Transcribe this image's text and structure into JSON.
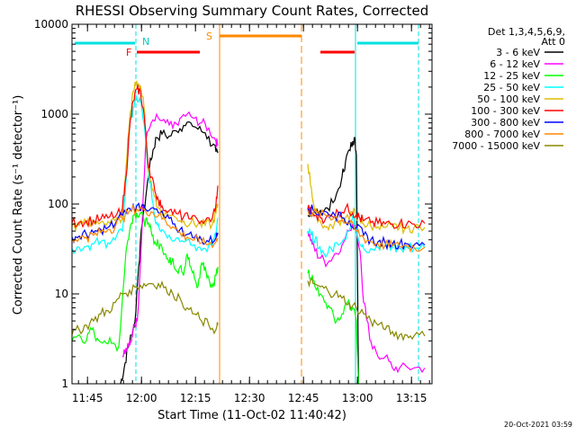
{
  "chart_data": {
    "type": "line",
    "title": "RHESSI Observing Summary Count Rates, Corrected",
    "xlabel": "Start Time (11-Oct-02 11:40:42)",
    "ylabel": "Corrected Count Rate (s⁻¹ detector⁻¹)",
    "footer": "20-Oct-2021 03:59",
    "yscale": "log",
    "ylim": [
      1,
      10000
    ],
    "xlim_minutes": [
      0,
      100
    ],
    "x_unit": "minutes after 11:40:42",
    "x_ticks": [
      {
        "label": "11:45",
        "value": 4.3
      },
      {
        "label": "12:00",
        "value": 19.3
      },
      {
        "label": "12:15",
        "value": 34.3
      },
      {
        "label": "12:30",
        "value": 49.3
      },
      {
        "label": "12:45",
        "value": 64.3
      },
      {
        "label": "13:00",
        "value": 79.3
      },
      {
        "label": "13:15",
        "value": 94.3
      }
    ],
    "y_ticks": [
      {
        "label": "1",
        "value": 1
      },
      {
        "label": "10",
        "value": 10
      },
      {
        "label": "100",
        "value": 100
      },
      {
        "label": "1000",
        "value": 1000
      },
      {
        "label": "10000",
        "value": 10000
      }
    ],
    "legend": {
      "header": [
        "Det 1,3,4,5,6,9,",
        "Att 0"
      ],
      "placement": "right"
    },
    "series": [
      {
        "name": "3 - 6 keV",
        "color": "#000000",
        "x": [
          13.5,
          14.5,
          15.5,
          16.5,
          17.5,
          18.5,
          19.5,
          20.5,
          21.5,
          22.5,
          23.5,
          25,
          27,
          29,
          31,
          33,
          35,
          37,
          39,
          40,
          40.5,
          65.5,
          67,
          69,
          71,
          73,
          75,
          76,
          77,
          78,
          78.5,
          79,
          79.6
        ],
        "y": [
          1,
          1.5,
          2.5,
          3.5,
          5,
          20,
          60,
          120,
          250,
          400,
          550,
          600,
          570,
          650,
          750,
          800,
          680,
          620,
          450,
          380,
          370,
          75,
          80,
          85,
          90,
          110,
          200,
          300,
          400,
          500,
          550,
          350,
          1
        ]
      },
      {
        "name": "6 - 12 keV",
        "color": "#ff00ff",
        "x": [
          14,
          15,
          16,
          16.5,
          17,
          17.5,
          18,
          18.5,
          19.5,
          20.5,
          22,
          24,
          26,
          28,
          30,
          32,
          34,
          36,
          38,
          40,
          40.5,
          65.5,
          66.5,
          67.5,
          69,
          71,
          73,
          75,
          77,
          78,
          79,
          80,
          81,
          82,
          83,
          85,
          87,
          89,
          91,
          95,
          98
        ],
        "y": [
          2,
          2.5,
          3,
          3,
          4,
          4.5,
          5,
          8,
          60,
          500,
          800,
          900,
          800,
          700,
          900,
          1000,
          900,
          800,
          700,
          500,
          450,
          50,
          40,
          30,
          25,
          22,
          28,
          35,
          50,
          60,
          50,
          30,
          8,
          5,
          3,
          2,
          2,
          1.5,
          1.5,
          1.5,
          1.5
        ]
      },
      {
        "name": "12 - 25 keV",
        "color": "#00ff00",
        "x": [
          0,
          2,
          4,
          5.5,
          7,
          9,
          11,
          13,
          15,
          16,
          17,
          18,
          19,
          20,
          21,
          22,
          23,
          24,
          25,
          26,
          27,
          28,
          29,
          30,
          31,
          32,
          33,
          34,
          35,
          36,
          37,
          38,
          39,
          40,
          40.5,
          65.5,
          66.5,
          67.5,
          69,
          70.5,
          72,
          73.5,
          75,
          76.5,
          78,
          79,
          79.6
        ],
        "y": [
          3,
          3.5,
          3,
          4,
          3.2,
          3,
          2.8,
          2.6,
          30,
          50,
          75,
          80,
          80,
          65,
          60,
          50,
          38,
          35,
          33,
          28,
          22,
          25,
          18,
          20,
          16,
          28,
          20,
          15,
          12,
          22,
          20,
          15,
          12,
          16,
          20,
          17,
          15,
          12,
          10,
          8,
          7,
          5,
          6,
          8,
          7,
          5,
          1
        ]
      },
      {
        "name": "25 - 50 keV",
        "color": "#00ffff",
        "x": [
          0,
          2,
          4,
          6,
          8,
          10,
          12,
          14,
          15,
          16,
          17,
          18,
          19,
          20,
          21,
          22,
          23,
          24,
          25,
          27,
          29,
          31,
          33,
          35,
          37,
          39,
          40,
          40.5,
          65.5,
          66.5,
          67.5,
          68.5,
          70,
          72,
          74,
          76,
          78,
          79,
          80,
          81,
          83,
          85,
          87,
          89,
          91,
          93,
          95,
          98
        ],
        "y": [
          32,
          33,
          34,
          36,
          38,
          37,
          40,
          50,
          180,
          700,
          1200,
          1500,
          1400,
          800,
          250,
          150,
          70,
          60,
          52,
          45,
          42,
          38,
          35,
          33,
          32,
          35,
          45,
          70,
          50,
          45,
          40,
          32,
          28,
          32,
          35,
          40,
          75,
          55,
          35,
          32,
          32,
          33,
          34,
          33,
          32,
          33,
          32,
          33
        ]
      },
      {
        "name": "50 - 100 keV",
        "color": "#ddbb00",
        "x": [
          0,
          2,
          4,
          6,
          8,
          10,
          12,
          14,
          15,
          16,
          17,
          18,
          19,
          20,
          21,
          22,
          23,
          24,
          25,
          27,
          29,
          31,
          33,
          35,
          37,
          39,
          40,
          40.5,
          65.5,
          66.5,
          67.5,
          69,
          70.5,
          72,
          74,
          76,
          78,
          79,
          80,
          81,
          83,
          85,
          87,
          89,
          91,
          93,
          95,
          98
        ],
        "y": [
          57,
          58,
          60,
          62,
          63,
          64,
          65,
          70,
          260,
          900,
          1800,
          2300,
          2100,
          1200,
          300,
          180,
          120,
          90,
          80,
          75,
          70,
          65,
          62,
          60,
          58,
          60,
          80,
          100,
          280,
          150,
          80,
          65,
          55,
          58,
          65,
          70,
          80,
          75,
          65,
          60,
          57,
          56,
          55,
          56,
          55,
          54,
          55,
          55
        ]
      },
      {
        "name": "100 - 300 keV",
        "color": "#ff0000",
        "x": [
          0,
          2,
          4,
          6,
          8,
          10,
          12,
          14,
          15,
          16,
          17,
          18,
          19,
          20,
          21,
          22,
          23,
          24,
          25,
          27,
          29,
          31,
          33,
          35,
          37,
          39,
          40,
          40.5,
          65.5,
          66.5,
          67.5,
          69,
          70.5,
          72,
          74,
          76,
          78,
          79,
          80,
          81,
          83,
          85,
          87,
          89,
          91,
          93,
          95,
          98
        ],
        "y": [
          62,
          63,
          65,
          66,
          68,
          70,
          72,
          90,
          200,
          700,
          1400,
          1900,
          1800,
          1000,
          320,
          200,
          140,
          110,
          95,
          85,
          78,
          72,
          68,
          65,
          65,
          70,
          100,
          160,
          90,
          80,
          75,
          70,
          70,
          75,
          80,
          90,
          80,
          75,
          70,
          65,
          62,
          61,
          60,
          60,
          61,
          60,
          60,
          61
        ]
      },
      {
        "name": "300 - 800 keV",
        "color": "#0000ff",
        "x": [
          0,
          2,
          4,
          6,
          8,
          10,
          12,
          14,
          16,
          18,
          20,
          22,
          24,
          26,
          28,
          30,
          32,
          34,
          36,
          38,
          40,
          40.5,
          65.5,
          67,
          69,
          71,
          73,
          75,
          77,
          79,
          81,
          83,
          85,
          87,
          89,
          91,
          93,
          95,
          98
        ],
        "y": [
          43,
          44,
          46,
          48,
          52,
          55,
          60,
          75,
          90,
          95,
          95,
          90,
          80,
          70,
          60,
          52,
          46,
          42,
          40,
          38,
          42,
          48,
          90,
          85,
          80,
          80,
          75,
          70,
          65,
          55,
          45,
          40,
          38,
          37,
          36,
          36,
          36,
          35,
          35
        ]
      },
      {
        "name": "800 - 7000 keV",
        "color": "#ff8800",
        "x": [
          0,
          2,
          4,
          6,
          8,
          10,
          12,
          14,
          16,
          18,
          20,
          22,
          24,
          26,
          28,
          30,
          32,
          34,
          36,
          38,
          40,
          40.5,
          65.5,
          67,
          69,
          71,
          73,
          75,
          77,
          79,
          81,
          83,
          85,
          87,
          89,
          91,
          93,
          95,
          98
        ],
        "y": [
          40,
          41,
          43,
          45,
          48,
          52,
          56,
          70,
          85,
          88,
          88,
          82,
          74,
          65,
          56,
          48,
          43,
          40,
          37,
          36,
          38,
          42,
          85,
          80,
          75,
          75,
          72,
          66,
          60,
          50,
          42,
          38,
          36,
          35,
          34,
          34,
          34,
          33,
          33
        ]
      },
      {
        "name": "7000 - 15000 keV",
        "color": "#888800",
        "x": [
          0,
          2,
          4,
          6,
          8,
          10,
          12,
          14,
          16,
          18,
          20,
          22,
          24,
          26,
          28,
          30,
          32,
          34,
          36,
          38,
          40,
          40.5,
          65.5,
          67,
          69,
          71,
          73,
          75,
          77,
          79,
          81,
          83,
          85,
          87,
          89,
          91,
          93,
          95,
          98
        ],
        "y": [
          3.5,
          4,
          4.5,
          5,
          6,
          6.5,
          8,
          10,
          11,
          12,
          13,
          13,
          13,
          12,
          10,
          9,
          7,
          6,
          5,
          4.5,
          4,
          4.5,
          14,
          13,
          12,
          11,
          10,
          9,
          8,
          7,
          6,
          5,
          4.5,
          4,
          3.8,
          3.5,
          3.5,
          3.4,
          3.4
        ]
      }
    ],
    "annotations": [
      {
        "label": "N",
        "color": "#00cccc"
      },
      {
        "label": "F",
        "color": "#ff0000"
      },
      {
        "label": "S",
        "color": "#ff8800"
      }
    ]
  }
}
